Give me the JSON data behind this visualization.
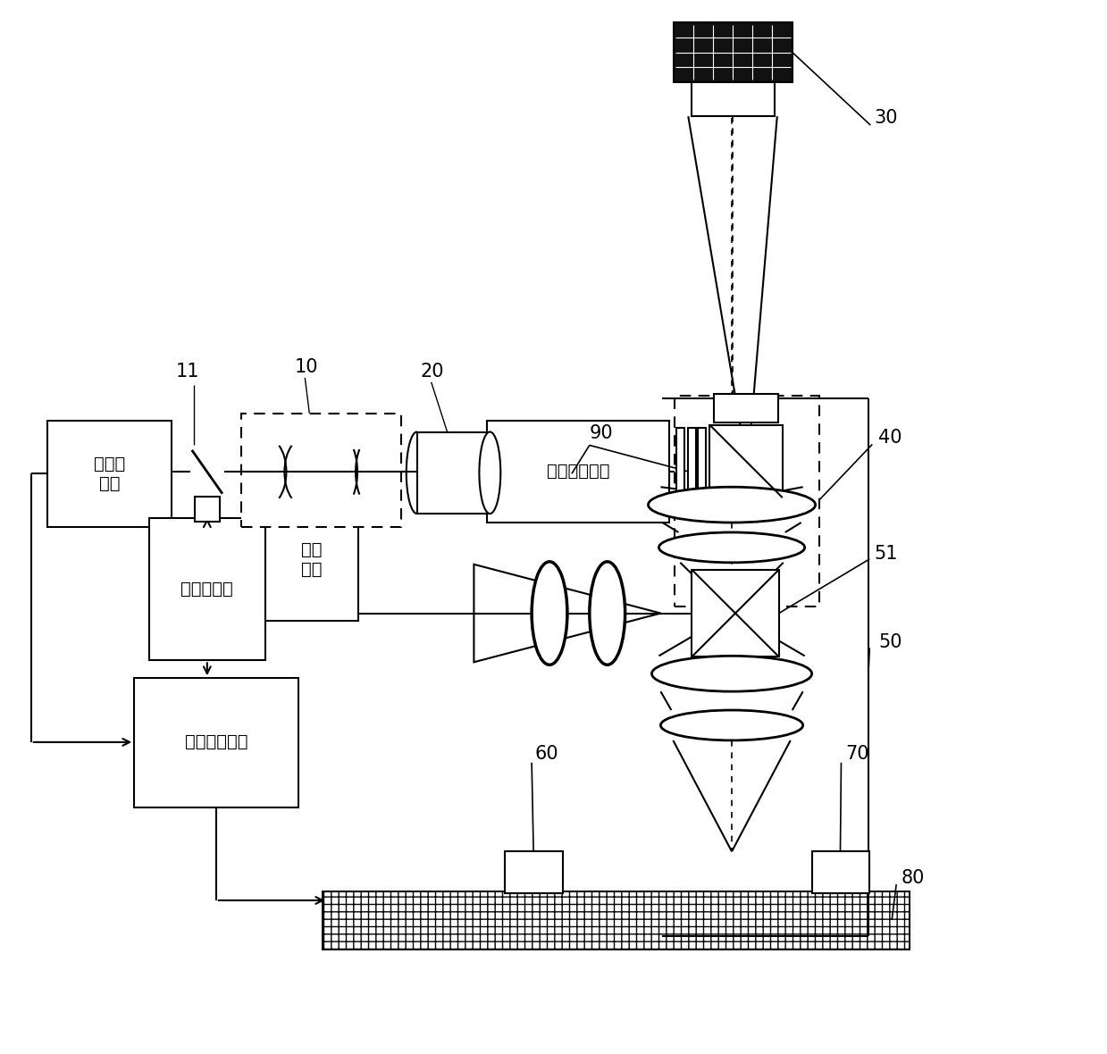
{
  "bg": "#ffffff",
  "lc": "#000000",
  "lw": 1.5,
  "labels": {
    "exposure_laser": "曝光激\n光器",
    "detect_laser": "探测激光器",
    "uniform_unit": "匀光照明单元",
    "sensor": "感光\n元件",
    "sync_control": "同步控制单元"
  }
}
